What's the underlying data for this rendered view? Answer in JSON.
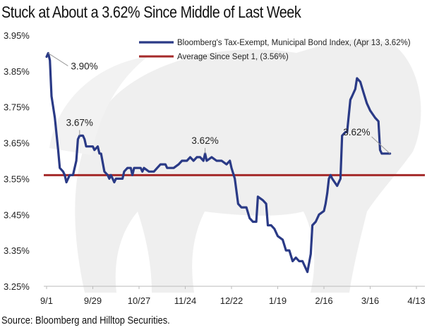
{
  "title": "Stuck at About a 3.62% Since Middle of Last Week",
  "source": "Source: Bloomberg and Hilltop Securities.",
  "chart_data": {
    "type": "line",
    "title": "Stuck at About a 3.62% Since Middle of Last Week",
    "xlabel": "",
    "ylabel": "",
    "ylim": [
      3.25,
      3.95
    ],
    "yticks": [
      3.25,
      3.35,
      3.45,
      3.55,
      3.65,
      3.75,
      3.85,
      3.95
    ],
    "ytick_labels": [
      "3.25%",
      "3.35%",
      "3.45%",
      "3.55%",
      "3.65%",
      "3.75%",
      "3.85%",
      "3.95%"
    ],
    "xtick_labels": [
      "9/1",
      "9/29",
      "10/27",
      "11/24",
      "12/22",
      "1/19",
      "2/16",
      "3/16",
      "4/13"
    ],
    "x_range_days": [
      0,
      224
    ],
    "grid": false,
    "legend_position": "top-center",
    "colors": {
      "index": "#2a3a86",
      "average": "#a52a2a"
    },
    "series": [
      {
        "name": "Bloomberg's Tax-Exempt, Municipal Bond Index,  (Apr 13, 3.62%)",
        "type": "line",
        "points": [
          [
            0,
            3.89
          ],
          [
            1,
            3.9
          ],
          [
            2,
            3.88
          ],
          [
            3,
            3.78
          ],
          [
            5,
            3.72
          ],
          [
            7,
            3.63
          ],
          [
            8,
            3.58
          ],
          [
            10,
            3.57
          ],
          [
            11,
            3.56
          ],
          [
            12,
            3.54
          ],
          [
            13,
            3.55
          ],
          [
            14,
            3.56
          ],
          [
            16,
            3.56
          ],
          [
            18,
            3.6
          ],
          [
            19,
            3.66
          ],
          [
            20,
            3.67
          ],
          [
            22,
            3.67
          ],
          [
            23,
            3.66
          ],
          [
            24,
            3.64
          ],
          [
            28,
            3.64
          ],
          [
            29,
            3.63
          ],
          [
            31,
            3.64
          ],
          [
            32,
            3.62
          ],
          [
            33,
            3.62
          ],
          [
            35,
            3.57
          ],
          [
            37,
            3.56
          ],
          [
            38,
            3.55
          ],
          [
            39,
            3.56
          ],
          [
            40,
            3.55
          ],
          [
            41,
            3.54
          ],
          [
            42,
            3.55
          ],
          [
            46,
            3.55
          ],
          [
            47,
            3.57
          ],
          [
            49,
            3.58
          ],
          [
            51,
            3.58
          ],
          [
            52,
            3.56
          ],
          [
            53,
            3.58
          ],
          [
            57,
            3.58
          ],
          [
            58,
            3.57
          ],
          [
            59,
            3.58
          ],
          [
            62,
            3.57
          ],
          [
            65,
            3.57
          ],
          [
            67,
            3.58
          ],
          [
            69,
            3.59
          ],
          [
            72,
            3.59
          ],
          [
            73,
            3.58
          ],
          [
            77,
            3.58
          ],
          [
            80,
            3.59
          ],
          [
            82,
            3.6
          ],
          [
            85,
            3.6
          ],
          [
            87,
            3.61
          ],
          [
            89,
            3.6
          ],
          [
            91,
            3.61
          ],
          [
            93,
            3.61
          ],
          [
            95,
            3.6
          ],
          [
            96,
            3.62
          ],
          [
            97,
            3.6
          ],
          [
            100,
            3.61
          ],
          [
            103,
            3.6
          ],
          [
            106,
            3.6
          ],
          [
            109,
            3.59
          ],
          [
            111,
            3.6
          ],
          [
            112,
            3.58
          ],
          [
            114,
            3.55
          ],
          [
            116,
            3.48
          ],
          [
            118,
            3.47
          ],
          [
            121,
            3.47
          ],
          [
            123,
            3.44
          ],
          [
            125,
            3.43
          ],
          [
            127,
            3.43
          ],
          [
            128,
            3.5
          ],
          [
            131,
            3.49
          ],
          [
            133,
            3.48
          ],
          [
            134,
            3.42
          ],
          [
            136,
            3.42
          ],
          [
            138,
            3.41
          ],
          [
            140,
            3.39
          ],
          [
            143,
            3.38
          ],
          [
            145,
            3.35
          ],
          [
            147,
            3.35
          ],
          [
            149,
            3.32
          ],
          [
            151,
            3.33
          ],
          [
            153,
            3.32
          ],
          [
            155,
            3.32
          ],
          [
            156,
            3.31
          ],
          [
            158,
            3.29
          ],
          [
            160,
            3.34
          ],
          [
            161,
            3.42
          ],
          [
            163,
            3.43
          ],
          [
            165,
            3.45
          ],
          [
            168,
            3.46
          ],
          [
            169,
            3.48
          ],
          [
            170,
            3.51
          ],
          [
            171,
            3.55
          ],
          [
            172,
            3.56
          ],
          [
            173,
            3.55
          ],
          [
            176,
            3.53
          ],
          [
            178,
            3.55
          ],
          [
            179,
            3.67
          ],
          [
            181,
            3.68
          ],
          [
            182,
            3.68
          ],
          [
            184,
            3.77
          ],
          [
            185,
            3.78
          ],
          [
            186,
            3.79
          ],
          [
            187,
            3.8
          ],
          [
            188,
            3.83
          ],
          [
            190,
            3.82
          ],
          [
            192,
            3.79
          ],
          [
            194,
            3.76
          ],
          [
            196,
            3.74
          ],
          [
            199,
            3.72
          ],
          [
            201,
            3.71
          ],
          [
            202,
            3.63
          ],
          [
            203,
            3.62
          ],
          [
            206,
            3.62
          ],
          [
            207,
            3.62
          ],
          [
            208,
            3.62
          ]
        ]
      },
      {
        "name": "Average Since Sept 1, (3.56%)",
        "type": "hline",
        "value": 3.56
      }
    ],
    "annotations": [
      {
        "text": "3.90%",
        "x_day": 1,
        "y": 3.9,
        "label_position": "right-below"
      },
      {
        "text": "3.67%",
        "x_day": 20,
        "y": 3.67,
        "label_position": "above"
      },
      {
        "text": "3.62%",
        "x_day": 96,
        "y": 3.62,
        "label_position": "above"
      },
      {
        "text": "3.62%",
        "x_day": 208,
        "y": 3.62,
        "label_position": "upper-left"
      }
    ]
  }
}
